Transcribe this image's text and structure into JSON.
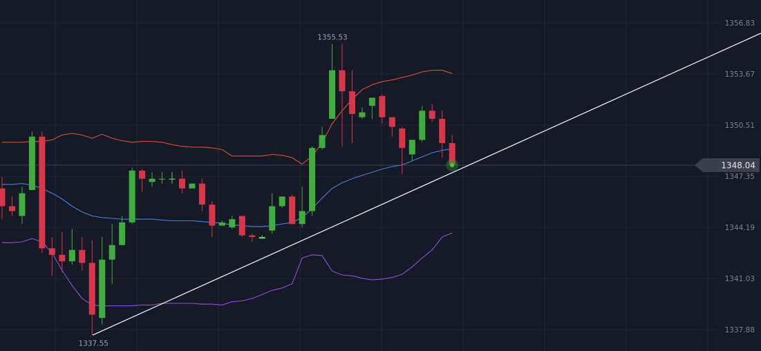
{
  "chart_data": {
    "type": "candlestick",
    "title": "",
    "xlabel": "",
    "ylabel": "",
    "grid": true,
    "y_axis_side": "right",
    "y_ticks": [
      "1356.83",
      "1353.67",
      "1350.51",
      "1347.35",
      "1344.19",
      "1341.03",
      "1337.88"
    ],
    "ylim": [
      1336.8,
      1358.6
    ],
    "current_price": "1348.04",
    "annotations": [
      {
        "label": "1355.53",
        "value": 1355.53,
        "candle_index": 33,
        "position": "above"
      },
      {
        "label": "1337.55",
        "value": 1337.55,
        "candle_index": 9,
        "position": "below"
      }
    ],
    "candles": [
      {
        "o": 1346.6,
        "h": 1347.3,
        "l": 1344.7,
        "c": 1345.5,
        "dir": "down"
      },
      {
        "o": 1345.5,
        "h": 1346.1,
        "l": 1344.9,
        "c": 1345.2,
        "dir": "down"
      },
      {
        "o": 1344.9,
        "h": 1346.7,
        "l": 1344.4,
        "c": 1346.3,
        "dir": "up"
      },
      {
        "o": 1346.5,
        "h": 1350.1,
        "l": 1346.5,
        "c": 1349.8,
        "dir": "up"
      },
      {
        "o": 1349.8,
        "h": 1350.1,
        "l": 1342.6,
        "c": 1342.9,
        "dir": "down"
      },
      {
        "o": 1342.9,
        "h": 1343.6,
        "l": 1341.2,
        "c": 1342.5,
        "dir": "down"
      },
      {
        "o": 1342.5,
        "h": 1343.9,
        "l": 1341.4,
        "c": 1342.1,
        "dir": "down"
      },
      {
        "o": 1342.1,
        "h": 1344.1,
        "l": 1341.9,
        "c": 1342.8,
        "dir": "up"
      },
      {
        "o": 1342.8,
        "h": 1343.6,
        "l": 1341.5,
        "c": 1342.0,
        "dir": "down"
      },
      {
        "o": 1342.0,
        "h": 1343.4,
        "l": 1337.55,
        "c": 1338.8,
        "dir": "down"
      },
      {
        "o": 1338.6,
        "h": 1343.6,
        "l": 1338.2,
        "c": 1342.2,
        "dir": "up"
      },
      {
        "o": 1342.2,
        "h": 1344.4,
        "l": 1340.7,
        "c": 1343.1,
        "dir": "up"
      },
      {
        "o": 1343.1,
        "h": 1344.9,
        "l": 1343.1,
        "c": 1344.5,
        "dir": "up"
      },
      {
        "o": 1344.5,
        "h": 1347.9,
        "l": 1344.4,
        "c": 1347.7,
        "dir": "up"
      },
      {
        "o": 1347.7,
        "h": 1347.8,
        "l": 1346.4,
        "c": 1347.2,
        "dir": "down"
      },
      {
        "o": 1347.0,
        "h": 1347.6,
        "l": 1346.7,
        "c": 1347.2,
        "dir": "up"
      },
      {
        "o": 1347.2,
        "h": 1347.6,
        "l": 1346.9,
        "c": 1347.2,
        "dir": "up"
      },
      {
        "o": 1347.2,
        "h": 1347.6,
        "l": 1346.9,
        "c": 1347.2,
        "dir": "flat"
      },
      {
        "o": 1347.2,
        "h": 1347.7,
        "l": 1346.3,
        "c": 1346.6,
        "dir": "down"
      },
      {
        "o": 1346.6,
        "h": 1346.9,
        "l": 1346.6,
        "c": 1346.9,
        "dir": "up"
      },
      {
        "o": 1346.9,
        "h": 1347.2,
        "l": 1345.2,
        "c": 1345.6,
        "dir": "down"
      },
      {
        "o": 1345.6,
        "h": 1345.8,
        "l": 1343.6,
        "c": 1344.3,
        "dir": "down"
      },
      {
        "o": 1344.3,
        "h": 1344.6,
        "l": 1344.3,
        "c": 1344.5,
        "dir": "up"
      },
      {
        "o": 1344.2,
        "h": 1344.9,
        "l": 1344.1,
        "c": 1344.7,
        "dir": "up"
      },
      {
        "o": 1344.9,
        "h": 1344.9,
        "l": 1343.6,
        "c": 1343.7,
        "dir": "down"
      },
      {
        "o": 1343.7,
        "h": 1343.8,
        "l": 1343.3,
        "c": 1343.6,
        "dir": "down"
      },
      {
        "o": 1343.6,
        "h": 1343.7,
        "l": 1343.5,
        "c": 1343.5,
        "dir": "flat"
      },
      {
        "o": 1344.0,
        "h": 1346.3,
        "l": 1343.8,
        "c": 1345.5,
        "dir": "up"
      },
      {
        "o": 1345.5,
        "h": 1346.1,
        "l": 1345.4,
        "c": 1346.1,
        "dir": "up"
      },
      {
        "o": 1346.1,
        "h": 1346.2,
        "l": 1344.6,
        "c": 1344.4,
        "dir": "down"
      },
      {
        "o": 1344.4,
        "h": 1346.7,
        "l": 1344.2,
        "c": 1345.2,
        "dir": "up"
      },
      {
        "o": 1345.2,
        "h": 1349.2,
        "l": 1344.9,
        "c": 1349.1,
        "dir": "up"
      },
      {
        "o": 1349.1,
        "h": 1350.4,
        "l": 1349.0,
        "c": 1349.9,
        "dir": "up"
      },
      {
        "o": 1350.9,
        "h": 1355.53,
        "l": 1350.9,
        "c": 1353.9,
        "dir": "up"
      },
      {
        "o": 1353.9,
        "h": 1355.53,
        "l": 1349.2,
        "c": 1352.6,
        "dir": "down"
      },
      {
        "o": 1352.6,
        "h": 1353.9,
        "l": 1349.4,
        "c": 1351.2,
        "dir": "down"
      },
      {
        "o": 1351.3,
        "h": 1351.6,
        "l": 1350.9,
        "c": 1351.0,
        "dir": "up"
      },
      {
        "o": 1351.7,
        "h": 1352.0,
        "l": 1350.9,
        "c": 1352.2,
        "dir": "up"
      },
      {
        "o": 1352.3,
        "h": 1352.4,
        "l": 1350.6,
        "c": 1351.0,
        "dir": "down"
      },
      {
        "o": 1351.0,
        "h": 1351.0,
        "l": 1349.8,
        "c": 1350.4,
        "dir": "down"
      },
      {
        "o": 1350.3,
        "h": 1350.4,
        "l": 1347.5,
        "c": 1349.1,
        "dir": "down"
      },
      {
        "o": 1348.7,
        "h": 1349.6,
        "l": 1348.3,
        "c": 1349.6,
        "dir": "up"
      },
      {
        "o": 1349.6,
        "h": 1351.7,
        "l": 1349.5,
        "c": 1351.4,
        "dir": "up"
      },
      {
        "o": 1351.4,
        "h": 1351.8,
        "l": 1350.7,
        "c": 1350.9,
        "dir": "down"
      },
      {
        "o": 1350.9,
        "h": 1351.4,
        "l": 1348.5,
        "c": 1349.4,
        "dir": "down"
      },
      {
        "o": 1349.4,
        "h": 1349.9,
        "l": 1348.0,
        "c": 1348.04,
        "dir": "down"
      }
    ],
    "series": [
      {
        "name": "",
        "color": "#d9503f",
        "values": [
          1349.45,
          1349.45,
          1349.45,
          1349.5,
          1349.5,
          1349.6,
          1349.9,
          1350.0,
          1349.9,
          1349.7,
          1349.95,
          1349.7,
          1349.55,
          1349.45,
          1349.5,
          1349.5,
          1349.45,
          1349.3,
          1349.2,
          1349.15,
          1349.15,
          1349.1,
          1349.0,
          1348.6,
          1348.6,
          1348.6,
          1348.6,
          1348.7,
          1348.65,
          1348.5,
          1348.1,
          1348.6,
          1349.4,
          1350.6,
          1351.4,
          1352.1,
          1352.7,
          1353.0,
          1353.2,
          1353.3,
          1353.45,
          1353.6,
          1353.8,
          1353.9,
          1353.9,
          1353.7
        ]
      },
      {
        "name": "",
        "color": "#4a7fe0",
        "values": [
          1346.85,
          1346.85,
          1346.9,
          1346.8,
          1346.6,
          1346.3,
          1345.95,
          1345.5,
          1345.15,
          1344.9,
          1344.8,
          1344.75,
          1344.7,
          1344.7,
          1344.7,
          1344.7,
          1344.65,
          1344.6,
          1344.6,
          1344.6,
          1344.55,
          1344.5,
          1344.45,
          1344.35,
          1344.3,
          1344.25,
          1344.25,
          1344.3,
          1344.4,
          1344.5,
          1344.8,
          1345.35,
          1346.0,
          1346.6,
          1346.95,
          1347.2,
          1347.4,
          1347.6,
          1347.8,
          1347.95,
          1348.05,
          1348.3,
          1348.55,
          1348.8,
          1348.95,
          1349.05
        ]
      },
      {
        "name": "",
        "color": "#8f4fe0",
        "values": [
          1343.25,
          1343.25,
          1343.3,
          1343.5,
          1343.3,
          1342.6,
          1341.55,
          1340.6,
          1339.8,
          1339.4,
          1339.35,
          1339.35,
          1339.35,
          1339.35,
          1339.4,
          1339.4,
          1339.5,
          1339.5,
          1339.5,
          1339.5,
          1339.45,
          1339.45,
          1339.4,
          1339.6,
          1339.65,
          1339.8,
          1340.05,
          1340.3,
          1340.45,
          1340.7,
          1342.3,
          1342.5,
          1342.45,
          1341.5,
          1341.25,
          1341.2,
          1341.05,
          1340.95,
          1341.0,
          1341.1,
          1341.3,
          1341.75,
          1342.3,
          1342.8,
          1343.6,
          1343.85
        ]
      }
    ]
  }
}
